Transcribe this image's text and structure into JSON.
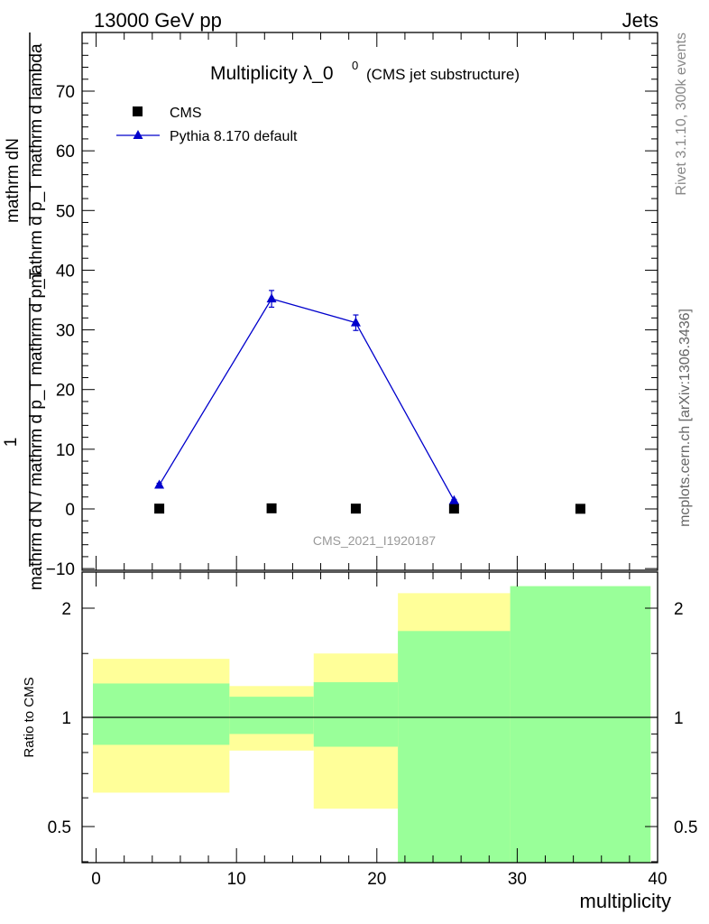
{
  "header": {
    "left": "13000 GeV pp",
    "right": "Jets"
  },
  "side": {
    "top": "Rivet 3.1.10,  300k events",
    "bottom": "mcplots.cern.ch [arXiv:1306.3436]"
  },
  "chart_data": {
    "type": "scatter",
    "title": "Multiplicity λ_0",
    "title_superscript": "0",
    "title_suffix": "(CMS jet substructure)",
    "analysis_label": "CMS_2021_I1920187",
    "xlabel": "multiplicity",
    "ylabel_top_numerator": "mathrm dN",
    "ylabel_top_denominator": "mathrm d p_T mathrm d lambda",
    "ylabel_bottom_numerator": "1",
    "ylabel_bottom_denominator": "mathrm d N / mathrm d p_T mathrm d p_T",
    "ratio_ylabel": "Ratio to CMS",
    "xlim": [
      -1,
      40
    ],
    "ylim": [
      -10,
      80
    ],
    "x_ticks": [
      "0",
      "10",
      "20",
      "30",
      "40"
    ],
    "y_ticks": [
      "−10",
      "0",
      "10",
      "20",
      "30",
      "40",
      "50",
      "60",
      "70"
    ],
    "ratio_ylim": [
      0.38,
      2.3
    ],
    "ratio_ticks": [
      "0.5",
      "1",
      "2"
    ],
    "legend_position": "top-left",
    "series": [
      {
        "name": "CMS",
        "marker": "square",
        "color": "#000000",
        "x": [
          4.5,
          12.5,
          18.5,
          25.5,
          34.5
        ],
        "y": [
          0.05,
          0.1,
          0.05,
          0.05,
          0.02
        ]
      },
      {
        "name": "Pythia 8.170 default",
        "marker": "triangle",
        "color": "#0000cc",
        "x": [
          4.5,
          12.5,
          18.5,
          25.5
        ],
        "y": [
          4.0,
          35.2,
          31.2,
          1.4
        ],
        "yerr": [
          0.3,
          1.4,
          1.3,
          0.2
        ]
      }
    ],
    "ratio_bands": [
      {
        "x0": -1.0,
        "x1": 9.5,
        "inner": [
          0.84,
          1.24
        ],
        "outer": [
          0.62,
          1.45
        ]
      },
      {
        "x0": 9.5,
        "x1": 15.5,
        "inner": [
          0.9,
          1.14
        ],
        "outer": [
          0.81,
          1.22
        ]
      },
      {
        "x0": 15.5,
        "x1": 21.5,
        "inner": [
          0.83,
          1.25
        ],
        "outer": [
          0.56,
          1.5
        ]
      },
      {
        "x0": 21.5,
        "x1": 29.5,
        "inner": [
          0.38,
          1.73
        ],
        "outer": [
          0.38,
          2.2
        ]
      },
      {
        "x0": 29.5,
        "x1": 39.5,
        "inner": [
          0.38,
          2.3
        ],
        "outer": [
          0.38,
          2.3
        ]
      }
    ],
    "band_colors": {
      "inner": "#99ff99",
      "outer": "#ffff99"
    }
  }
}
